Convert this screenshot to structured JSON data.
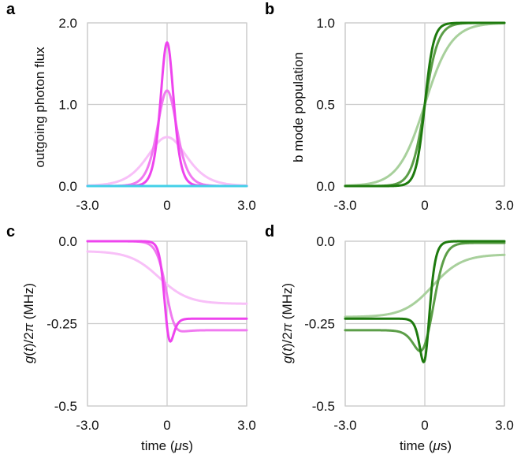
{
  "figure": {
    "colors": {
      "magenta_dark": "#EE44EE",
      "magenta_mid": "#F07AF0",
      "magenta_light": "#F8C0F8",
      "cyan": "#44D0E8",
      "green_dark": "#1E7A0E",
      "green_mid": "#5C9E48",
      "green_light": "#A8D09C",
      "grid": "#CCCCCC"
    }
  },
  "chart_data": [
    {
      "panel": "a",
      "type": "line",
      "xlabel": "",
      "ylabel": "outgoing photon flux",
      "xlim": [
        -3.0,
        3.0
      ],
      "ylim": [
        0.0,
        2.0
      ],
      "xticks": [
        -3.0,
        0.0,
        3.0
      ],
      "xtick_labels": [
        "-3.0",
        "0",
        "3.0"
      ],
      "yticks": [
        0.0,
        1.0,
        2.0
      ],
      "ytick_labels": [
        "0.0",
        "1.0",
        "2.0"
      ],
      "grid": "major",
      "series": [
        {
          "name": "light",
          "color": "#F8C0F8",
          "kind": "sech2",
          "center": 0,
          "peak": 0.6,
          "width": 1.0
        },
        {
          "name": "mid",
          "color": "#F07AF0",
          "kind": "sech2",
          "center": 0,
          "peak": 1.17,
          "width": 0.5
        },
        {
          "name": "dark",
          "color": "#EE44EE",
          "kind": "sech2",
          "center": 0,
          "peak": 1.76,
          "width": 0.333
        },
        {
          "name": "baseline",
          "color": "#44D0E8",
          "kind": "const",
          "value": 0.0
        }
      ]
    },
    {
      "panel": "b",
      "type": "line",
      "xlabel": "",
      "ylabel": "b mode population",
      "xlim": [
        -3.0,
        3.0
      ],
      "ylim": [
        0.0,
        1.0
      ],
      "xticks": [
        -3.0,
        0.0,
        3.0
      ],
      "xtick_labels": [
        "-3.0",
        "0",
        "3.0"
      ],
      "yticks": [
        0.0,
        0.5,
        1.0
      ],
      "ytick_labels": [
        "0.0",
        "0.5",
        "1.0"
      ],
      "grid": "major",
      "series": [
        {
          "name": "light",
          "color": "#A8D09C",
          "kind": "tanh",
          "center": 0,
          "low": 0.0,
          "high": 1.0,
          "width": 1.0
        },
        {
          "name": "mid",
          "color": "#5C9E48",
          "kind": "tanh",
          "center": 0,
          "low": 0.0,
          "high": 1.0,
          "width": 0.5
        },
        {
          "name": "dark",
          "color": "#1E7A0E",
          "kind": "tanh",
          "center": 0,
          "low": 0.0,
          "high": 1.0,
          "width": 0.333
        }
      ]
    },
    {
      "panel": "c",
      "type": "line",
      "xlabel": "time (μs)",
      "ylabel": "g(t)/2π (MHz)",
      "xlim": [
        -3.0,
        3.0
      ],
      "ylim": [
        -0.5,
        0.0
      ],
      "xticks": [
        -3.0,
        0.0,
        3.0
      ],
      "xtick_labels": [
        "-3.0",
        "0",
        "3.0"
      ],
      "yticks": [
        -0.5,
        -0.25,
        0.0
      ],
      "ytick_labels": [
        "-0.5",
        "-0.25",
        "0.0"
      ],
      "grid": "major",
      "series": [
        {
          "name": "light",
          "color": "#F8C0F8",
          "kind": "sigmoid",
          "center": -0.3,
          "start": -0.03,
          "end": -0.19,
          "width": 1.1
        },
        {
          "name": "mid",
          "color": "#F07AF0",
          "kind": "dip",
          "center": 0.1,
          "start": 0.0,
          "end": -0.27,
          "width": 0.33,
          "dip_center": 0.05,
          "dip_depth": -0.07,
          "dip_width": 0.4
        },
        {
          "name": "dark",
          "color": "#EE44EE",
          "kind": "dip",
          "center": 0.05,
          "start": 0.0,
          "end": -0.235,
          "width": 0.15,
          "dip_center": 0.0,
          "dip_depth": -0.18,
          "dip_width": 0.22
        }
      ]
    },
    {
      "panel": "d",
      "type": "line",
      "xlabel": "time (μs)",
      "ylabel": "g(t)/2π (MHz)",
      "xlim": [
        -3.0,
        3.0
      ],
      "ylim": [
        -0.5,
        0.0
      ],
      "xticks": [
        -3.0,
        0.0,
        3.0
      ],
      "xtick_labels": [
        "-3.0",
        "0",
        "3.0"
      ],
      "yticks": [
        -0.5,
        -0.25,
        0.0
      ],
      "ytick_labels": [
        "-0.5",
        "-0.25",
        "0.0"
      ],
      "grid": "major",
      "series": [
        {
          "name": "light",
          "color": "#A8D09C",
          "kind": "sigmoid",
          "center": 0.3,
          "start": -0.23,
          "end": -0.04,
          "width": 1.1
        },
        {
          "name": "mid",
          "color": "#5C9E48",
          "kind": "dip",
          "center": 0.4,
          "start": -0.27,
          "end": -0.005,
          "width": 0.4,
          "dip_center": -0.1,
          "dip_depth": -0.08,
          "dip_width": 0.42
        },
        {
          "name": "dark",
          "color": "#1E7A0E",
          "kind": "dip",
          "center": 0.15,
          "start": -0.235,
          "end": 0.0,
          "width": 0.28,
          "dip_center": 0.0,
          "dip_depth": -0.185,
          "dip_width": 0.24
        }
      ]
    }
  ]
}
